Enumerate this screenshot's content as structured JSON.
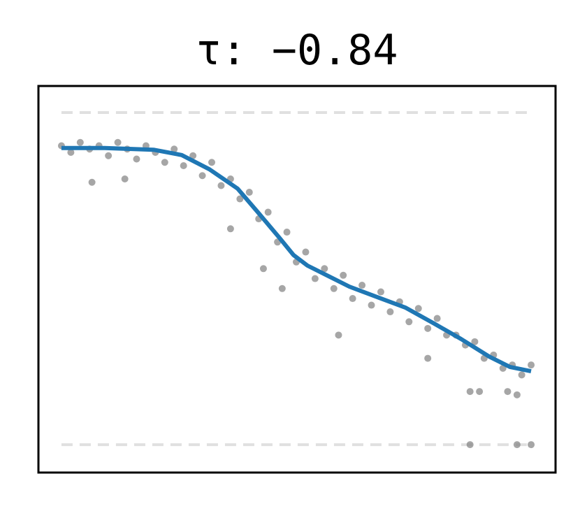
{
  "chart_data": {
    "type": "scatter",
    "title": "τ: −0.84",
    "xlim": [
      -0.049,
      1.052
    ],
    "ylim": [
      -0.084,
      1.08
    ],
    "hlines": [
      0,
      1
    ],
    "hline_color": "#e0e0e0",
    "series": [
      {
        "type": "scatter",
        "color": "#808080",
        "x": [
          0,
          0.02,
          0.04,
          0.06,
          0.08,
          0.1,
          0.12,
          0.14,
          0.16,
          0.18,
          0.2,
          0.22,
          0.24,
          0.26,
          0.28,
          0.3,
          0.32,
          0.34,
          0.36,
          0.38,
          0.4,
          0.42,
          0.44,
          0.46,
          0.48,
          0.5,
          0.52,
          0.54,
          0.56,
          0.58,
          0.6,
          0.62,
          0.64,
          0.66,
          0.68,
          0.7,
          0.72,
          0.74,
          0.76,
          0.78,
          0.8,
          0.82,
          0.84,
          0.86,
          0.88,
          0.9,
          0.92,
          0.94,
          0.96,
          0.98,
          1.0,
          0.065,
          0.135,
          0.36,
          0.43,
          0.47,
          0.59,
          0.78,
          0.87,
          0.89,
          0.97,
          0.87,
          0.97,
          1.0,
          0.95
        ],
        "values": [
          0.9,
          0.88,
          0.91,
          0.89,
          0.9,
          0.87,
          0.91,
          0.89,
          0.86,
          0.9,
          0.88,
          0.85,
          0.89,
          0.84,
          0.87,
          0.81,
          0.85,
          0.78,
          0.8,
          0.74,
          0.76,
          0.68,
          0.7,
          0.61,
          0.64,
          0.55,
          0.58,
          0.5,
          0.53,
          0.47,
          0.51,
          0.44,
          0.48,
          0.42,
          0.46,
          0.4,
          0.43,
          0.37,
          0.41,
          0.35,
          0.38,
          0.33,
          0.33,
          0.3,
          0.31,
          0.26,
          0.27,
          0.23,
          0.24,
          0.21,
          0.24,
          0.79,
          0.8,
          0.65,
          0.53,
          0.47,
          0.33,
          0.26,
          0.16,
          0.16,
          0.15,
          0.0,
          0.0,
          0.0,
          0.16
        ]
      },
      {
        "type": "line",
        "color": "#1f77b4",
        "x": [
          0,
          0.092,
          0.196,
          0.256,
          0.315,
          0.375,
          0.42,
          0.464,
          0.494,
          0.524,
          0.569,
          0.613,
          0.673,
          0.732,
          0.792,
          0.851,
          0.911,
          0.955,
          1.0
        ],
        "values": [
          0.893,
          0.893,
          0.888,
          0.872,
          0.829,
          0.771,
          0.697,
          0.623,
          0.571,
          0.539,
          0.507,
          0.476,
          0.444,
          0.413,
          0.366,
          0.318,
          0.265,
          0.234,
          0.221
        ]
      }
    ]
  }
}
